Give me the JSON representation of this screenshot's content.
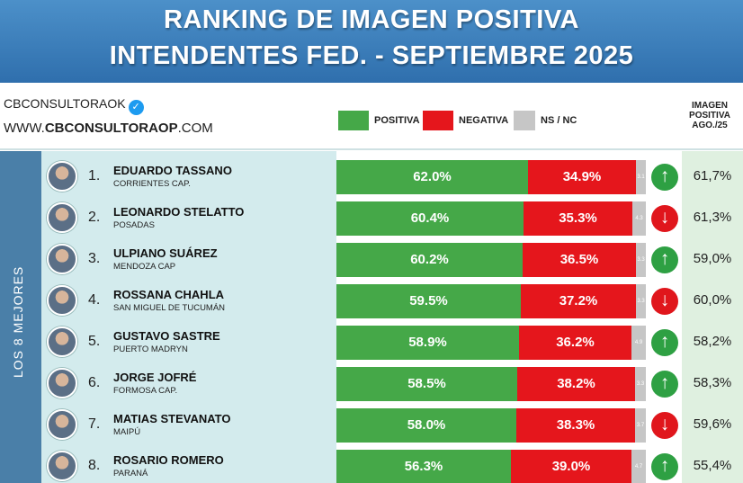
{
  "header": {
    "title_line1": "RANKING DE IMAGEN POSITIVA",
    "title_line2": "INTENDENTES FED. - SEPTIEMBRE 2025"
  },
  "brand": {
    "handle": "CBCONSULTORAOK",
    "website_prefix": "WWW.",
    "website_bold": "CBCONSULTORAOP",
    "website_suffix": ".COM"
  },
  "legend": {
    "positive": "POSITIVA",
    "negative": "NEGATIVA",
    "ns_nc": "NS / NC"
  },
  "previous_header": [
    "IMAGEN",
    "POSITIVA",
    "AGO./25"
  ],
  "side_label": "LOS 8 MEJORES",
  "colors": {
    "header_bg": "#3b7dbb",
    "positive": "#45a848",
    "negative": "#e5161c",
    "ns_nc": "#c6c6c6",
    "trend_up": "#2ea043",
    "trend_down": "#e0161c",
    "name_panel": "#d3ebed",
    "prev_panel": "#dff0e0",
    "side_strip": "#4a7fa8"
  },
  "chart_data": {
    "type": "bar",
    "stacked": true,
    "orientation": "horizontal",
    "title": "RANKING DE IMAGEN POSITIVA INTENDENTES FED. - SEPTIEMBRE 2025",
    "categories": [
      "EDUARDO TASSANO",
      "LEONARDO STELATTO",
      "ULPIANO SUÁREZ",
      "ROSSANA CHAHLA",
      "GUSTAVO SASTRE",
      "JORGE JOFRÉ",
      "MATIAS STEVANATO",
      "ROSARIO ROMERO"
    ],
    "rows": [
      {
        "rank": "1.",
        "name": "EDUARDO TASSANO",
        "city": "CORRIENTES CAP.",
        "pos": 62.0,
        "neg": 34.9,
        "ns": 3.1,
        "pos_label": "62.0%",
        "neg_label": "34.9%",
        "ns_label": "3.1",
        "trend": "up",
        "prev": "61,7%"
      },
      {
        "rank": "2.",
        "name": "LEONARDO STELATTO",
        "city": "POSADAS",
        "pos": 60.4,
        "neg": 35.3,
        "ns": 4.3,
        "pos_label": "60.4%",
        "neg_label": "35.3%",
        "ns_label": "4.3",
        "trend": "down",
        "prev": "61,3%"
      },
      {
        "rank": "3.",
        "name": "ULPIANO SUÁREZ",
        "city": "MENDOZA CAP",
        "pos": 60.2,
        "neg": 36.5,
        "ns": 3.3,
        "pos_label": "60.2%",
        "neg_label": "36.5%",
        "ns_label": "3.3",
        "trend": "up",
        "prev": "59,0%"
      },
      {
        "rank": "4.",
        "name": "ROSSANA CHAHLA",
        "city": "SAN MIGUEL DE TUCUMÁN",
        "pos": 59.5,
        "neg": 37.2,
        "ns": 3.3,
        "pos_label": "59.5%",
        "neg_label": "37.2%",
        "ns_label": "3.3",
        "trend": "down",
        "prev": "60,0%"
      },
      {
        "rank": "5.",
        "name": "GUSTAVO SASTRE",
        "city": "PUERTO MADRYN",
        "pos": 58.9,
        "neg": 36.2,
        "ns": 4.9,
        "pos_label": "58.9%",
        "neg_label": "36.2%",
        "ns_label": "4.9",
        "trend": "up",
        "prev": "58,2%"
      },
      {
        "rank": "6.",
        "name": "JORGE JOFRÉ",
        "city": "FORMOSA CAP.",
        "pos": 58.5,
        "neg": 38.2,
        "ns": 3.3,
        "pos_label": "58.5%",
        "neg_label": "38.2%",
        "ns_label": "3.3",
        "trend": "up",
        "prev": "58,3%"
      },
      {
        "rank": "7.",
        "name": "MATIAS STEVANATO",
        "city": "MAIPÚ",
        "pos": 58.0,
        "neg": 38.3,
        "ns": 3.7,
        "pos_label": "58.0%",
        "neg_label": "38.3%",
        "ns_label": "3.7",
        "trend": "down",
        "prev": "59,6%"
      },
      {
        "rank": "8.",
        "name": "ROSARIO ROMERO",
        "city": "PARANÁ",
        "pos": 56.3,
        "neg": 39.0,
        "ns": 4.7,
        "pos_label": "56.3%",
        "neg_label": "39.0%",
        "ns_label": "4.7",
        "trend": "up",
        "prev": "55,4%"
      }
    ],
    "legend": [
      "POSITIVA",
      "NEGATIVA",
      "NS / NC"
    ],
    "xlim": [
      0,
      100
    ]
  }
}
